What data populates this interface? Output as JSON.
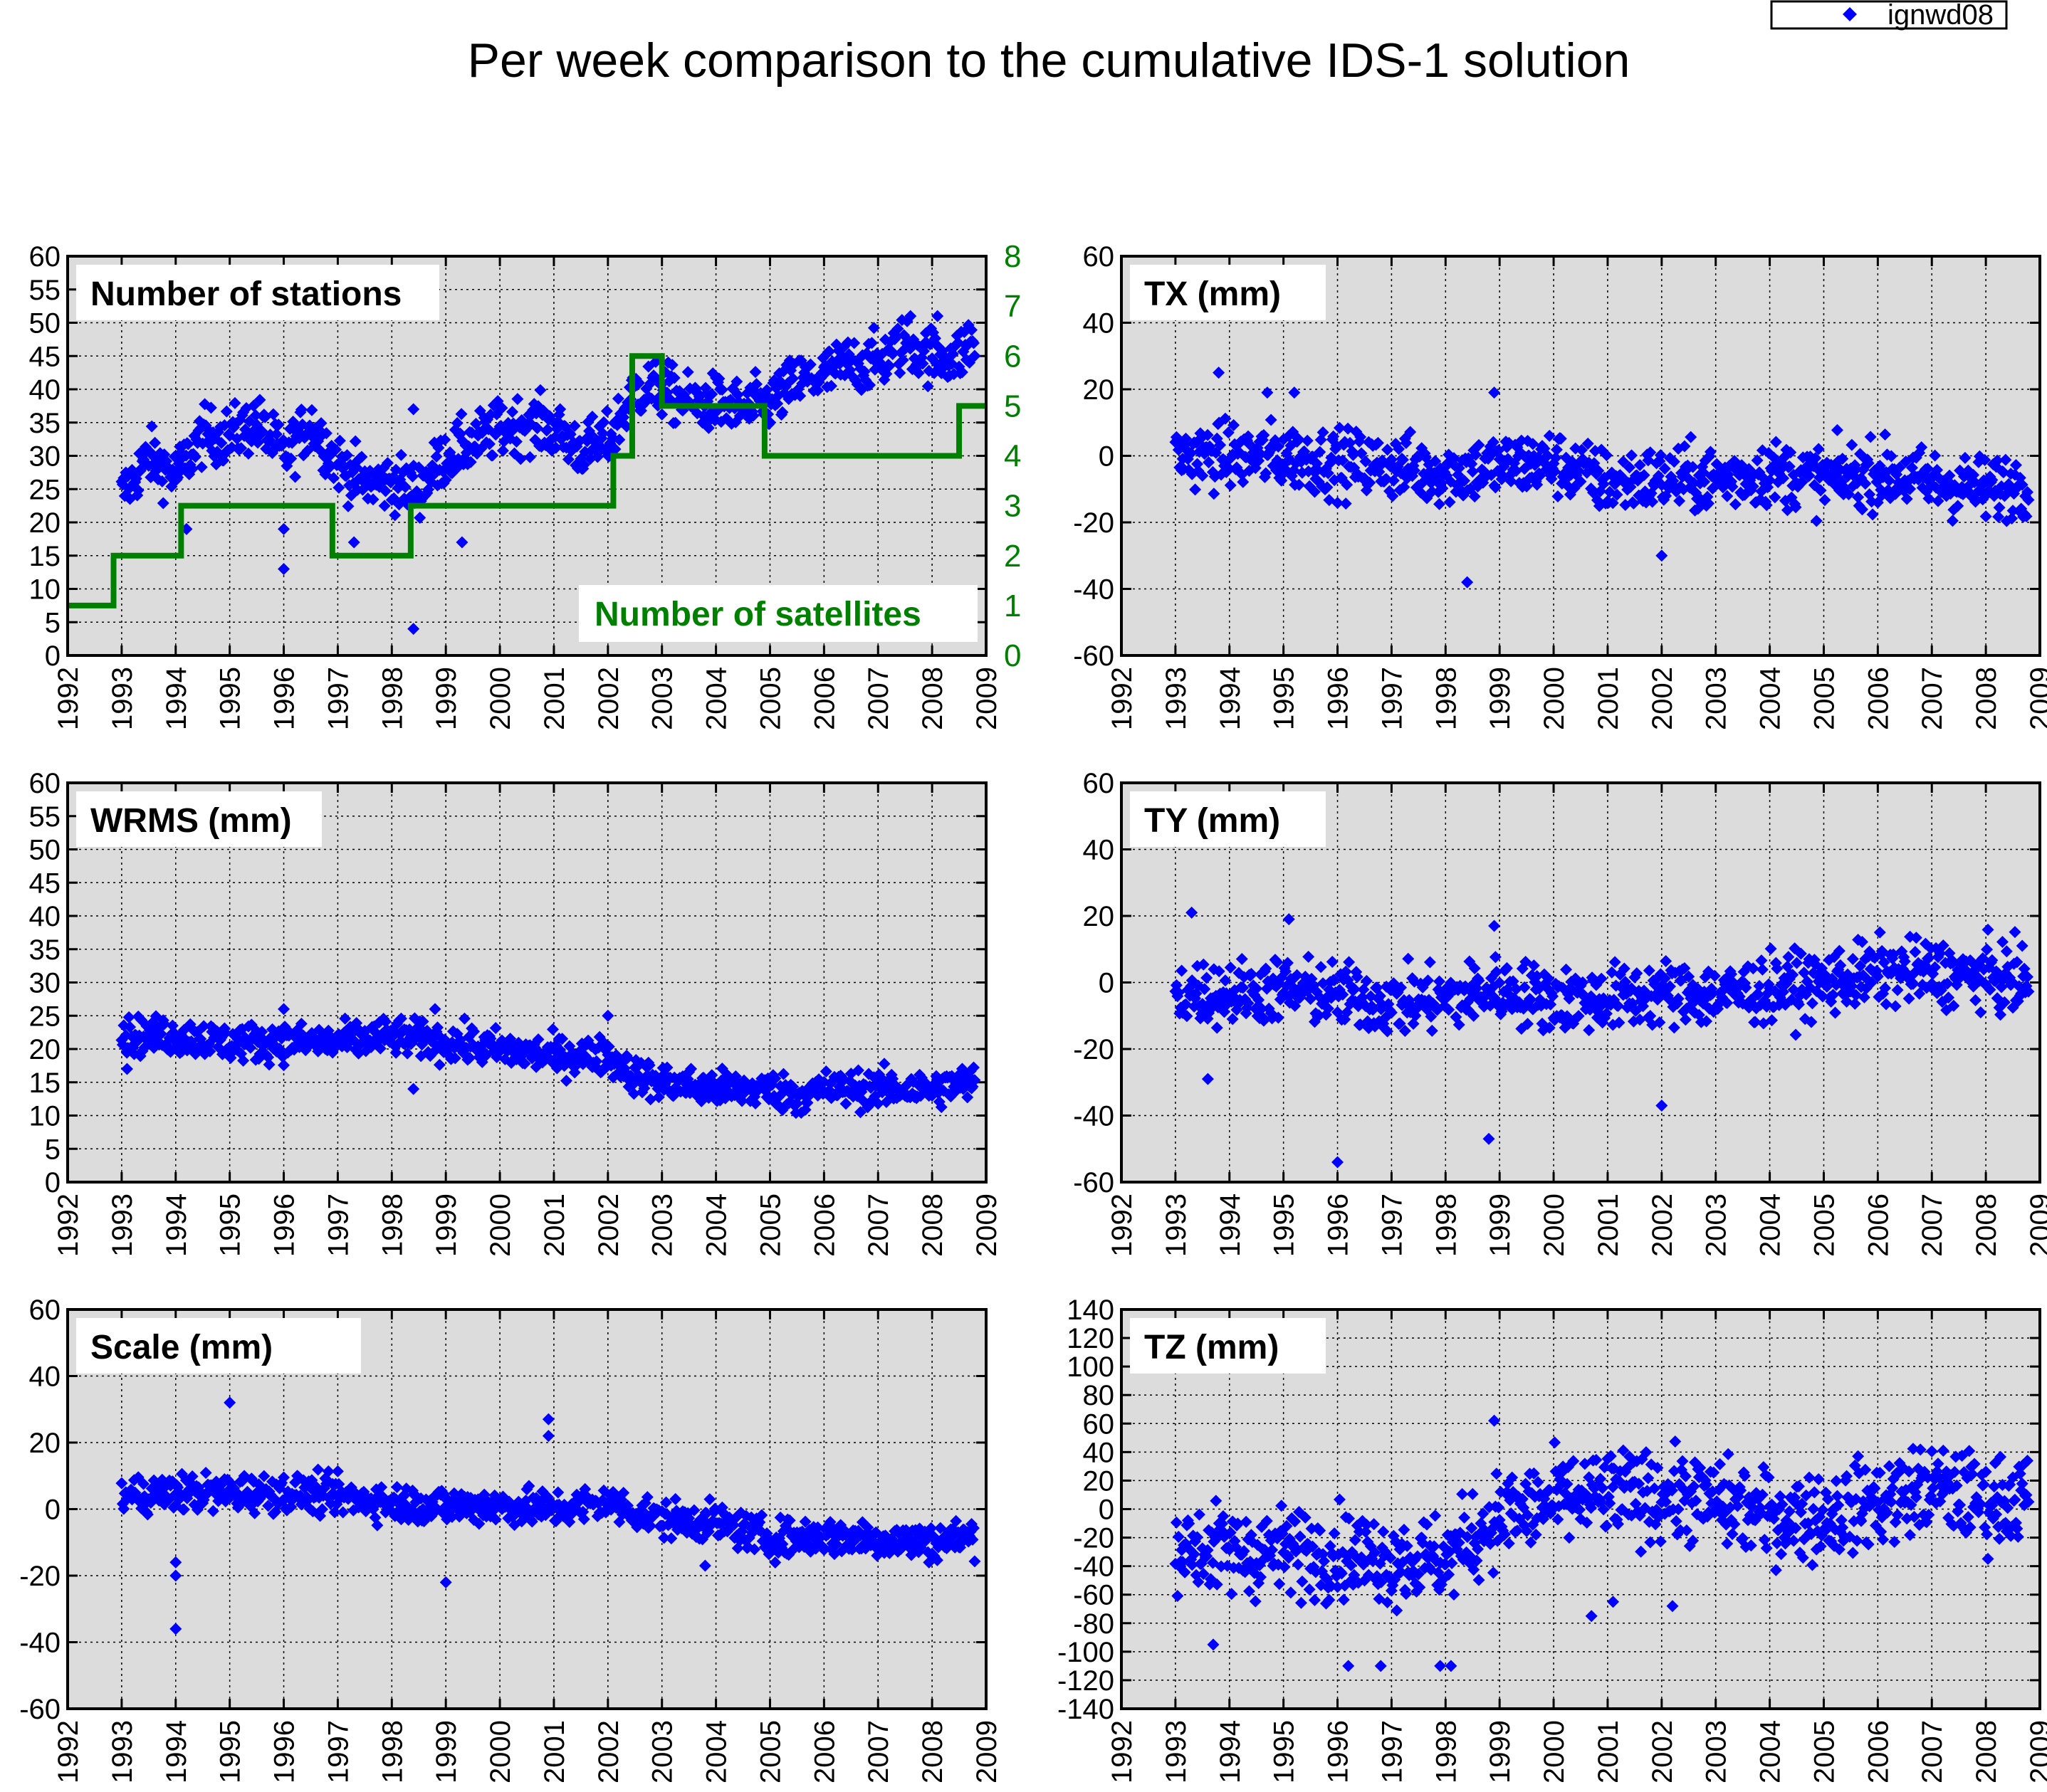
{
  "title": "Per week comparison to the cumulative IDS-1 solution",
  "legend": {
    "label": "ignwd08",
    "color": "#0000ff"
  },
  "colors": {
    "points": "#0000ff",
    "satellites": "#008000",
    "plot_bg": "#dcdcdc"
  },
  "x_axis": {
    "range": [
      1992,
      2009
    ],
    "ticks": [
      "1992",
      "1993",
      "1994",
      "1995",
      "1996",
      "1997",
      "1998",
      "1999",
      "2000",
      "2001",
      "2002",
      "2003",
      "2004",
      "2005",
      "2006",
      "2007",
      "2008",
      "2009"
    ]
  },
  "panels": [
    {
      "id": "stations",
      "label": "Number of stations"
    },
    {
      "id": "tx",
      "label": "TX (mm)"
    },
    {
      "id": "wrms",
      "label": "WRMS (mm)"
    },
    {
      "id": "ty",
      "label": "TY (mm)"
    },
    {
      "id": "scale",
      "label": "Scale (mm)"
    },
    {
      "id": "tz",
      "label": "TZ (mm)"
    }
  ],
  "satellite_label": "Number of satellites",
  "chart_data": [
    {
      "id": "stations",
      "type": "scatter",
      "title": "Number of stations",
      "xlim": [
        1992,
        2009
      ],
      "ylim": [
        0,
        60
      ],
      "yticks": [
        "0",
        "5",
        "10",
        "15",
        "20",
        "25",
        "30",
        "35",
        "40",
        "45",
        "50",
        "55",
        "60"
      ],
      "series": [
        {
          "name": "ignwd08",
          "trend": [
            [
              1993.0,
              24
            ],
            [
              1993.5,
              30
            ],
            [
              1994.0,
              27
            ],
            [
              1994.5,
              33
            ],
            [
              1995.0,
              33
            ],
            [
              1995.5,
              35
            ],
            [
              1996.0,
              30
            ],
            [
              1996.5,
              35
            ],
            [
              1997.0,
              29
            ],
            [
              1997.5,
              26
            ],
            [
              1998.0,
              26
            ],
            [
              1998.5,
              25
            ],
            [
              1999.0,
              30
            ],
            [
              1999.5,
              32
            ],
            [
              2000.0,
              34
            ],
            [
              2000.5,
              35
            ],
            [
              2001.0,
              34
            ],
            [
              2001.5,
              31
            ],
            [
              2002.0,
              32
            ],
            [
              2002.5,
              40
            ],
            [
              2003.0,
              40
            ],
            [
              2003.5,
              38
            ],
            [
              2004.0,
              38
            ],
            [
              2004.5,
              37
            ],
            [
              2005.0,
              38
            ],
            [
              2005.5,
              41
            ],
            [
              2006.0,
              42
            ],
            [
              2006.5,
              44
            ],
            [
              2007.0,
              44
            ],
            [
              2007.5,
              47
            ],
            [
              2008.0,
              45
            ],
            [
              2008.5,
              45
            ],
            [
              2008.8,
              48
            ]
          ],
          "noise": 3,
          "outliers": [
            [
              1998.4,
              4
            ],
            [
              1996.0,
              13
            ],
            [
              1994.2,
              19
            ],
            [
              1996.0,
              19
            ],
            [
              1997.3,
              17
            ],
            [
              1998.4,
              37
            ],
            [
              2007.6,
              51
            ],
            [
              2008.1,
              51
            ],
            [
              1999.3,
              17
            ]
          ]
        },
        {
          "name": "Number of satellites",
          "secondary_axis": true,
          "y2lim": [
            0,
            8
          ],
          "y2ticks": [
            "0",
            "1",
            "2",
            "3",
            "4",
            "5",
            "6",
            "7",
            "8"
          ],
          "steps": [
            [
              1992.0,
              1
            ],
            [
              1992.85,
              2
            ],
            [
              1994.1,
              3
            ],
            [
              1996.9,
              2
            ],
            [
              1998.35,
              3
            ],
            [
              2002.1,
              4
            ],
            [
              2002.45,
              6
            ],
            [
              2003.0,
              5
            ],
            [
              2004.9,
              4
            ],
            [
              2008.5,
              5
            ],
            [
              2009.0,
              5
            ]
          ]
        }
      ]
    },
    {
      "id": "tx",
      "type": "scatter",
      "title": "TX (mm)",
      "xlim": [
        1992,
        2009
      ],
      "ylim": [
        -60,
        60
      ],
      "yticks": [
        "-60",
        "-40",
        "-20",
        "0",
        "20",
        "40",
        "60"
      ],
      "series": [
        {
          "name": "ignwd08",
          "trend": [
            [
              1993.0,
              0
            ],
            [
              1994.0,
              0
            ],
            [
              1995.0,
              0
            ],
            [
              1996.0,
              -2
            ],
            [
              1997.0,
              -3
            ],
            [
              1998.0,
              -5
            ],
            [
              1999.0,
              -3
            ],
            [
              2000.0,
              -2
            ],
            [
              2001.0,
              -8
            ],
            [
              2002.0,
              -7
            ],
            [
              2003.0,
              -7
            ],
            [
              2004.0,
              -5
            ],
            [
              2005.0,
              -7
            ],
            [
              2006.0,
              -5
            ],
            [
              2007.0,
              -8
            ],
            [
              2008.0,
              -10
            ],
            [
              2008.8,
              -8
            ]
          ],
          "noise": 7,
          "outliers": [
            [
              1993.8,
              25
            ],
            [
              1998.4,
              -38
            ],
            [
              1994.7,
              19
            ],
            [
              1995.2,
              19
            ],
            [
              1998.9,
              19
            ],
            [
              2002.0,
              -30
            ]
          ]
        }
      ]
    },
    {
      "id": "wrms",
      "type": "scatter",
      "title": "WRMS (mm)",
      "xlim": [
        1992,
        2009
      ],
      "ylim": [
        0,
        60
      ],
      "yticks": [
        "0",
        "5",
        "10",
        "15",
        "20",
        "25",
        "30",
        "35",
        "40",
        "45",
        "50",
        "55",
        "60"
      ],
      "series": [
        {
          "name": "ignwd08",
          "trend": [
            [
              1993.0,
              22
            ],
            [
              1994.0,
              22
            ],
            [
              1995.0,
              21
            ],
            [
              1996.0,
              21
            ],
            [
              1997.0,
              21
            ],
            [
              1998.0,
              22
            ],
            [
              1999.0,
              21
            ],
            [
              2000.0,
              20
            ],
            [
              2001.0,
              19
            ],
            [
              2002.0,
              19
            ],
            [
              2002.5,
              16
            ],
            [
              2003.0,
              15
            ],
            [
              2004.0,
              14
            ],
            [
              2005.0,
              14
            ],
            [
              2005.5,
              13
            ],
            [
              2006.0,
              14
            ],
            [
              2007.0,
              14
            ],
            [
              2008.0,
              14
            ],
            [
              2008.8,
              15
            ]
          ],
          "noise": 2,
          "outliers": [
            [
              1998.4,
              14
            ],
            [
              2002.0,
              25
            ],
            [
              1996.0,
              26
            ],
            [
              1998.8,
              26
            ],
            [
              1993.1,
              17
            ]
          ]
        }
      ]
    },
    {
      "id": "ty",
      "type": "scatter",
      "title": "TY (mm)",
      "xlim": [
        1992,
        2009
      ],
      "ylim": [
        -60,
        60
      ],
      "yticks": [
        "-60",
        "-40",
        "-20",
        "0",
        "20",
        "40",
        "60"
      ],
      "series": [
        {
          "name": "ignwd08",
          "trend": [
            [
              1993.0,
              -3
            ],
            [
              1994.0,
              -3
            ],
            [
              1995.0,
              -2
            ],
            [
              1996.0,
              -4
            ],
            [
              1997.0,
              -6
            ],
            [
              1998.0,
              -5
            ],
            [
              1999.0,
              -2
            ],
            [
              2000.0,
              -5
            ],
            [
              2001.0,
              -5
            ],
            [
              2002.0,
              -3
            ],
            [
              2003.0,
              -4
            ],
            [
              2004.0,
              -2
            ],
            [
              2005.0,
              0
            ],
            [
              2006.0,
              3
            ],
            [
              2007.0,
              3
            ],
            [
              2008.0,
              2
            ],
            [
              2008.8,
              0
            ]
          ],
          "noise": 7,
          "outliers": [
            [
              1996.0,
              -54
            ],
            [
              1998.8,
              -47
            ],
            [
              2002.0,
              -37
            ],
            [
              1993.3,
              21
            ],
            [
              1993.6,
              -29
            ],
            [
              1998.9,
              17
            ],
            [
              1995.1,
              19
            ]
          ]
        }
      ]
    },
    {
      "id": "scale",
      "type": "scatter",
      "title": "Scale (mm)",
      "xlim": [
        1992,
        2009
      ],
      "ylim": [
        -60,
        60
      ],
      "yticks": [
        "-60",
        "-40",
        "-20",
        "0",
        "20",
        "40",
        "60"
      ],
      "series": [
        {
          "name": "ignwd08",
          "trend": [
            [
              1993.0,
              4
            ],
            [
              1994.0,
              5
            ],
            [
              1995.0,
              5
            ],
            [
              1996.0,
              5
            ],
            [
              1997.0,
              4
            ],
            [
              1998.0,
              2
            ],
            [
              1999.0,
              1
            ],
            [
              2000.0,
              1
            ],
            [
              2001.0,
              0
            ],
            [
              2002.0,
              2
            ],
            [
              2003.0,
              -3
            ],
            [
              2004.0,
              -4
            ],
            [
              2005.0,
              -9
            ],
            [
              2006.0,
              -8
            ],
            [
              2007.0,
              -9
            ],
            [
              2008.0,
              -10
            ],
            [
              2008.8,
              -8
            ]
          ],
          "noise": 4,
          "outliers": [
            [
              1994.0,
              -36
            ],
            [
              1995.0,
              32
            ],
            [
              2000.9,
              27
            ],
            [
              2000.9,
              22
            ],
            [
              1999.0,
              -22
            ],
            [
              1994.0,
              -20
            ],
            [
              2003.8,
              -17
            ],
            [
              1994.0,
              -16
            ]
          ]
        }
      ]
    },
    {
      "id": "tz",
      "type": "scatter",
      "title": "TZ (mm)",
      "xlim": [
        1992,
        2009
      ],
      "ylim": [
        -140,
        140
      ],
      "yticks": [
        "-140",
        "-120",
        "-100",
        "-80",
        "-60",
        "-40",
        "-20",
        "0",
        "20",
        "40",
        "60",
        "80",
        "100",
        "120",
        "140"
      ],
      "series": [
        {
          "name": "ignwd08",
          "trend": [
            [
              1993.0,
              -25
            ],
            [
              1994.0,
              -30
            ],
            [
              1995.0,
              -30
            ],
            [
              1996.0,
              -30
            ],
            [
              1997.0,
              -35
            ],
            [
              1998.0,
              -35
            ],
            [
              1999.0,
              -5
            ],
            [
              2000.0,
              5
            ],
            [
              2001.0,
              10
            ],
            [
              2002.0,
              10
            ],
            [
              2003.0,
              5
            ],
            [
              2004.0,
              -5
            ],
            [
              2005.0,
              -5
            ],
            [
              2006.0,
              5
            ],
            [
              2007.0,
              15
            ],
            [
              2008.0,
              5
            ],
            [
              2008.8,
              10
            ]
          ],
          "noise": 22,
          "outliers": [
            [
              1996.2,
              -110
            ],
            [
              1996.8,
              -110
            ],
            [
              1997.9,
              -110
            ],
            [
              1998.1,
              -110
            ],
            [
              1998.9,
              62
            ],
            [
              2002.2,
              -68
            ],
            [
              2000.7,
              -75
            ],
            [
              2001.1,
              -65
            ],
            [
              1993.7,
              -95
            ]
          ]
        }
      ]
    }
  ]
}
